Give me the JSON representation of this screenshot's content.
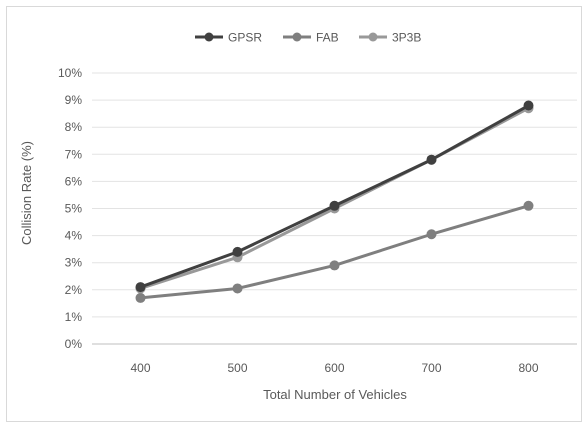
{
  "chart_data": {
    "type": "line",
    "xlabel": "Total Number of Vehicles",
    "ylabel": "Collision Rate (%)",
    "categories": [
      "400",
      "500",
      "600",
      "700",
      "800"
    ],
    "ylim": [
      0,
      10
    ],
    "y_ticks": [
      "0%",
      "1%",
      "2%",
      "3%",
      "4%",
      "5%",
      "6%",
      "7%",
      "8%",
      "9%",
      "10%"
    ],
    "grid": "horizontal",
    "legend_position": "top",
    "series": [
      {
        "name": "GPSR",
        "color": "#404040",
        "values": [
          2.1,
          3.4,
          5.1,
          6.8,
          8.8
        ]
      },
      {
        "name": "FAB",
        "color": "#7f7f7f",
        "values": [
          1.7,
          2.05,
          2.9,
          4.05,
          5.1
        ]
      },
      {
        "name": "3P3B",
        "color": "#999999",
        "values": [
          2.05,
          3.2,
          5.0,
          6.8,
          8.7
        ]
      }
    ]
  }
}
